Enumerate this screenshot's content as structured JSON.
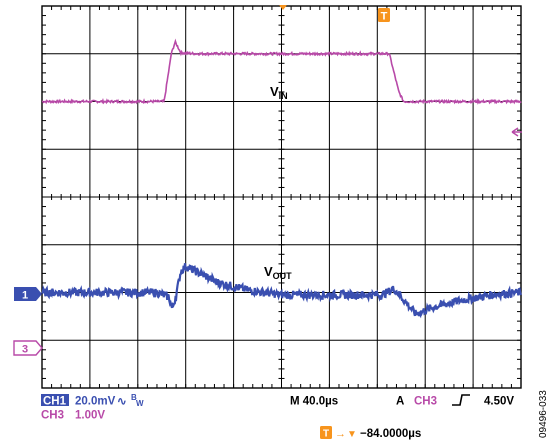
{
  "screen": {
    "grid_divisions": {
      "horizontal": 10,
      "vertical": 8
    },
    "colors": {
      "ch1": "#3a4fb0",
      "ch3": "#b84aa8",
      "trigger": "#f7941d",
      "grid": "#000000"
    }
  },
  "markers": {
    "ch1": "1",
    "ch3": "3",
    "trigger": "T",
    "trigger_arrow": "→",
    "trigger_down": "▼"
  },
  "labels": {
    "vin_main": "V",
    "vin_sub": "IN",
    "vout_main": "V",
    "vout_sub": "OUT"
  },
  "readout": {
    "ch1_tag": "CH1",
    "ch1_scale": "20.0mV",
    "ch1_coupling_symbol": "∿",
    "bw_b": "B",
    "bw_w": "W",
    "ch3_label": "CH3",
    "ch3_scale": "1.00V",
    "timebase": "M 40.0µs",
    "trig_mode": "A",
    "trig_source": "CH3",
    "trig_slope_symbol": "ʃ",
    "trig_level": "4.50V",
    "trig_position": "−84.0000µs"
  },
  "figure_id": "09496-033",
  "chart_data": {
    "type": "line",
    "xlabel": "",
    "ylabel": "",
    "x_unit": "div",
    "y_unit": "div",
    "xlim": [
      0,
      10
    ],
    "ylim": [
      -4,
      4
    ],
    "grid": true,
    "series": [
      {
        "name": "VIN",
        "channel": "CH3",
        "color": "#b84aa8",
        "points": [
          [
            0.0,
            2.0
          ],
          [
            2.55,
            2.0
          ],
          [
            2.7,
            3.0
          ],
          [
            2.78,
            3.25
          ],
          [
            2.9,
            3.02
          ],
          [
            3.2,
            3.0
          ],
          [
            7.0,
            3.0
          ],
          [
            7.25,
            3.0
          ],
          [
            7.45,
            2.2
          ],
          [
            7.55,
            2.0
          ],
          [
            10.0,
            2.0
          ]
        ]
      },
      {
        "name": "VOUT",
        "channel": "CH1",
        "color": "#3a4fb0",
        "points": [
          [
            0.0,
            -2.0
          ],
          [
            2.4,
            -2.0
          ],
          [
            2.65,
            -2.1
          ],
          [
            2.72,
            -2.35
          ],
          [
            2.8,
            -2.05
          ],
          [
            2.9,
            -1.55
          ],
          [
            3.0,
            -1.45
          ],
          [
            3.3,
            -1.6
          ],
          [
            3.7,
            -1.8
          ],
          [
            4.3,
            -1.95
          ],
          [
            5.0,
            -2.05
          ],
          [
            7.1,
            -2.05
          ],
          [
            7.35,
            -1.92
          ],
          [
            7.55,
            -2.15
          ],
          [
            7.8,
            -2.45
          ],
          [
            8.2,
            -2.3
          ],
          [
            8.8,
            -2.15
          ],
          [
            9.5,
            -2.03
          ],
          [
            10.0,
            -2.0
          ]
        ]
      }
    ]
  }
}
